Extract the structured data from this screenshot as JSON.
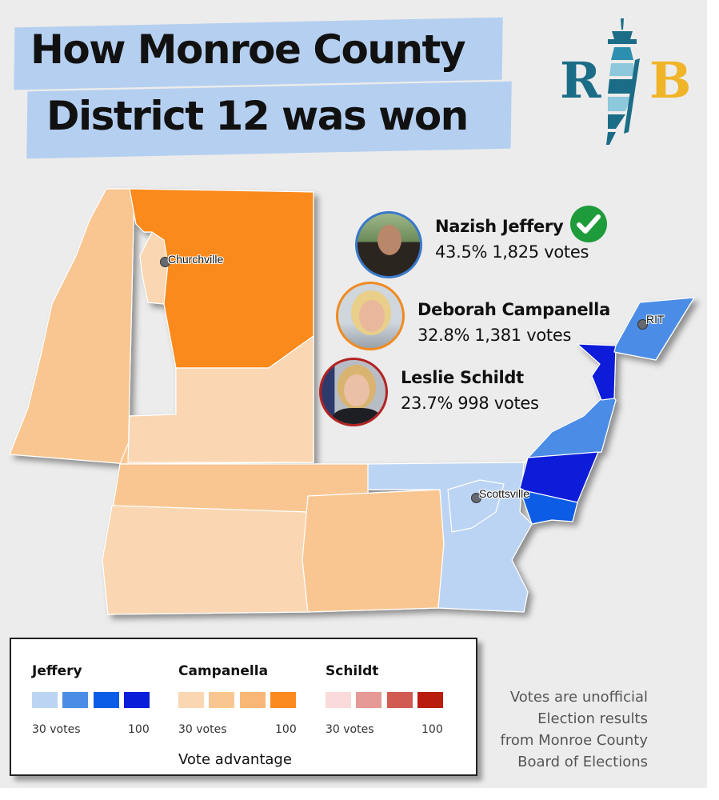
{
  "title": {
    "line1": "How Monroe County",
    "line2": "District 12 was won"
  },
  "logo": {
    "letter_left": "R",
    "letter_right": "B",
    "icon": "lighthouse-icon",
    "colors": {
      "teal": "#1b6c86",
      "gold": "#f0b428"
    }
  },
  "candidates": [
    {
      "name": "Nazish Jeffery",
      "percent": "43.5%",
      "votes": "1,825 votes",
      "winner": true,
      "ring_color": "#3a78c8",
      "winner_icon": "check-circle-icon"
    },
    {
      "name": "Deborah Campanella",
      "percent": "32.8%",
      "votes": "1,381 votes",
      "winner": false,
      "ring_color": "#f08a20"
    },
    {
      "name": "Leslie Schildt",
      "percent": "23.7%",
      "votes": "998 votes",
      "winner": false,
      "ring_color": "#b22222"
    }
  ],
  "places": {
    "churchville": "Churchville",
    "rit": "RIT",
    "scottsville": "Scottsville"
  },
  "legend": {
    "groups": [
      {
        "name": "Jeffery",
        "colors": [
          "#bcd4f4",
          "#4b8de6",
          "#0b5ce6",
          "#0a1ed9"
        ],
        "min_label": "30 votes",
        "max_label": "100"
      },
      {
        "name": "Campanella",
        "colors": [
          "#fad6b2",
          "#f9c692",
          "#f9b878",
          "#fb8a1e"
        ],
        "min_label": "30 votes",
        "max_label": "100"
      },
      {
        "name": "Schildt",
        "colors": [
          "#fadada",
          "#e59a96",
          "#d15b52",
          "#b81c0f"
        ],
        "min_label": "30 votes",
        "max_label": "100"
      }
    ],
    "caption": "Vote advantage"
  },
  "source_note": [
    "Votes are unofficial",
    "Election results",
    "from Monroe County",
    "Board of Elections"
  ]
}
